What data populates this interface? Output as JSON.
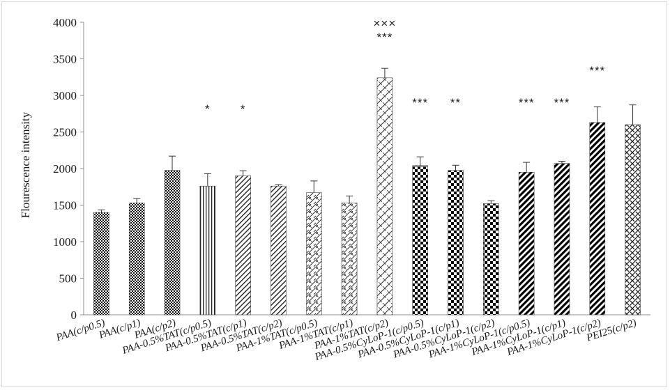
{
  "chart_data": {
    "type": "bar",
    "title": "",
    "xlabel": "",
    "ylabel": "Flourescence intensity",
    "ylim": [
      0,
      4000
    ],
    "yticks": [
      0,
      500,
      1000,
      1500,
      2000,
      2500,
      3000,
      3500,
      4000
    ],
    "grid": false,
    "legend": "none",
    "categories": [
      "PAA(c/p0.5)",
      "PAA(c/p1)",
      "PAA(c/p2)",
      "PAA-0.5%TAT(c/p0.5)",
      "PAA-0.5%TAT(c/p1)",
      "PAA-0.5%TAT(c/p2)",
      "PAA-1%TAT(c/p0.5)",
      "PAA-1%TAT(c/p1)",
      "PAA-1%TAT(c/p2)",
      "PAA-0.5%CyLoP-1(c/p0.5)",
      "PAA-0.5%CyLoP-1(c/p1)",
      "PAA-0.5%CyLoP-1(c/p2)",
      "PAA-1%CyLoP-1(c/p0.5)",
      "PAA-1%CyLoP-1(c/p1)",
      "PAA-1%CyLoP-1(c/p2)",
      "PEI25(c/p2)"
    ],
    "values": [
      1400,
      1530,
      1975,
      1760,
      1900,
      1760,
      1670,
      1530,
      3240,
      2040,
      1975,
      1520,
      1950,
      2070,
      2630,
      2600
    ],
    "errors": [
      35,
      60,
      195,
      170,
      70,
      20,
      160,
      95,
      130,
      120,
      70,
      40,
      135,
      30,
      215,
      270
    ],
    "annotations": [
      "",
      "",
      "",
      "*",
      "*",
      "",
      "",
      "",
      "×××\n***",
      "***",
      "**",
      "",
      "***",
      "***",
      "***",
      ""
    ],
    "patterns": [
      "dots",
      "dots",
      "dots",
      "vlines",
      "diag",
      "diag",
      "zigzag",
      "zigzag",
      "crosshatch",
      "checker",
      "checker",
      "checker",
      "bigdiag",
      "bigdiag",
      "bigdiag",
      "weave"
    ]
  }
}
